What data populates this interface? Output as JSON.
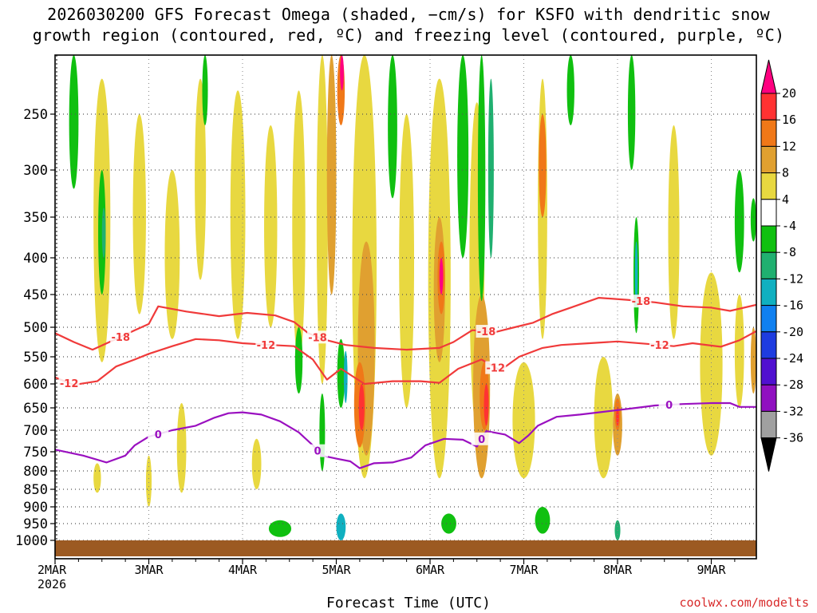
{
  "header": {
    "title_line1": "2026030200 GFS Forecast Omega (shaded, −cm/s) for KSFO with dendritic snow",
    "title_line2": "growth region (contoured, red, ºC) and freezing level (contoured, purple, ºC)"
  },
  "footer": {
    "xlabel": "Forecast Time (UTC)",
    "credit": "coolwx.com/modelts"
  },
  "chart_data": {
    "type": "heatmap",
    "title": "2026030200 GFS Forecast Omega (shaded, −cm/s) for KSFO with dendritic snow growth region (contoured, red, ºC) and freezing level (contoured, purple, ºC)",
    "xlabel": "Forecast Time (UTC)",
    "ylabel": "",
    "x_range_days": [
      0,
      7.5
    ],
    "y_range_hpa": [
      200,
      1000
    ],
    "x_ticks": [
      {
        "day": 0,
        "label": "2MAR",
        "sublabel": "2026"
      },
      {
        "day": 1,
        "label": "3MAR"
      },
      {
        "day": 2,
        "label": "4MAR"
      },
      {
        "day": 3,
        "label": "5MAR"
      },
      {
        "day": 4,
        "label": "6MAR"
      },
      {
        "day": 5,
        "label": "7MAR"
      },
      {
        "day": 6,
        "label": "8MAR"
      },
      {
        "day": 7,
        "label": "9MAR"
      }
    ],
    "y_ticks": [
      250,
      300,
      350,
      400,
      450,
      500,
      550,
      600,
      650,
      700,
      750,
      800,
      850,
      900,
      950,
      1000
    ],
    "colorbar": {
      "levels": [
        20,
        16,
        12,
        8,
        4,
        -4,
        -8,
        -12,
        -16,
        -20,
        -24,
        -28,
        -32,
        -36
      ],
      "colors": [
        "#ff0080",
        "#ff3232",
        "#f07818",
        "#e0a030",
        "#e8d840",
        "#ffffff",
        "#10c010",
        "#20b070",
        "#10b0c0",
        "#1080f0",
        "#1e3ce0",
        "#5010d0",
        "#9010c0",
        "#a0a0a0",
        "#000000"
      ]
    },
    "freezing_level": {
      "value": 0,
      "label": "0",
      "color": "#9a10c0",
      "points": [
        [
          0,
          745
        ],
        [
          0.3,
          760
        ],
        [
          0.55,
          778
        ],
        [
          0.75,
          760
        ],
        [
          0.85,
          735
        ],
        [
          1.0,
          715
        ],
        [
          1.25,
          700
        ],
        [
          1.5,
          690
        ],
        [
          1.7,
          672
        ],
        [
          1.85,
          662
        ],
        [
          2.0,
          660
        ],
        [
          2.2,
          665
        ],
        [
          2.4,
          680
        ],
        [
          2.6,
          705
        ],
        [
          2.75,
          735
        ],
        [
          2.85,
          760
        ],
        [
          3.0,
          768
        ],
        [
          3.15,
          775
        ],
        [
          3.25,
          793
        ],
        [
          3.4,
          780
        ],
        [
          3.6,
          778
        ],
        [
          3.8,
          765
        ],
        [
          3.95,
          735
        ],
        [
          4.15,
          720
        ],
        [
          4.35,
          722
        ],
        [
          4.5,
          738
        ],
        [
          4.6,
          702
        ],
        [
          4.8,
          710
        ],
        [
          4.95,
          730
        ],
        [
          5.05,
          712
        ],
        [
          5.15,
          690
        ],
        [
          5.35,
          670
        ],
        [
          5.6,
          665
        ],
        [
          5.8,
          660
        ],
        [
          6.0,
          655
        ],
        [
          6.2,
          650
        ],
        [
          6.4,
          645
        ],
        [
          6.7,
          642
        ],
        [
          7.0,
          640
        ],
        [
          7.2,
          640
        ],
        [
          7.3,
          648
        ],
        [
          7.5,
          648
        ]
      ]
    },
    "isotherm_minus12": {
      "value": -12,
      "label": "-12",
      "color": "#f03a3a",
      "points": [
        [
          0,
          588
        ],
        [
          0.2,
          602
        ],
        [
          0.45,
          595
        ],
        [
          0.65,
          568
        ],
        [
          0.85,
          555
        ],
        [
          1.0,
          545
        ],
        [
          1.25,
          532
        ],
        [
          1.5,
          520
        ],
        [
          1.75,
          522
        ],
        [
          2.0,
          527
        ],
        [
          2.3,
          530
        ],
        [
          2.55,
          532
        ],
        [
          2.75,
          555
        ],
        [
          2.9,
          592
        ],
        [
          3.05,
          572
        ],
        [
          3.3,
          600
        ],
        [
          3.6,
          595
        ],
        [
          3.9,
          595
        ],
        [
          4.1,
          598
        ],
        [
          4.3,
          572
        ],
        [
          4.55,
          555
        ],
        [
          4.75,
          575
        ],
        [
          4.95,
          550
        ],
        [
          5.2,
          535
        ],
        [
          5.4,
          530
        ],
        [
          5.7,
          527
        ],
        [
          6.0,
          524
        ],
        [
          6.3,
          528
        ],
        [
          6.6,
          532
        ],
        [
          6.8,
          527
        ],
        [
          7.1,
          533
        ],
        [
          7.3,
          522
        ],
        [
          7.5,
          505
        ]
      ]
    },
    "isotherm_minus18": {
      "value": -18,
      "label": "-18",
      "color": "#f03a3a",
      "points": [
        [
          0,
          510
        ],
        [
          0.2,
          525
        ],
        [
          0.4,
          538
        ],
        [
          0.65,
          520
        ],
        [
          0.85,
          505
        ],
        [
          1.0,
          495
        ],
        [
          1.1,
          468
        ],
        [
          1.4,
          476
        ],
        [
          1.75,
          483
        ],
        [
          2.05,
          478
        ],
        [
          2.35,
          482
        ],
        [
          2.55,
          492
        ],
        [
          2.7,
          510
        ],
        [
          2.85,
          520
        ],
        [
          3.1,
          530
        ],
        [
          3.4,
          535
        ],
        [
          3.75,
          538
        ],
        [
          4.1,
          535
        ],
        [
          4.25,
          525
        ],
        [
          4.45,
          505
        ],
        [
          4.7,
          508
        ],
        [
          4.85,
          502
        ],
        [
          5.1,
          493
        ],
        [
          5.3,
          480
        ],
        [
          5.5,
          470
        ],
        [
          5.8,
          455
        ],
        [
          6.1,
          458
        ],
        [
          6.4,
          462
        ],
        [
          6.7,
          468
        ],
        [
          7.0,
          470
        ],
        [
          7.2,
          475
        ],
        [
          7.5,
          465
        ]
      ]
    },
    "omega_notes": "Shaded omega: widespread 4–12 (yellow/orange) ascent with maxima 16–20 near 5MAR 200–250 hPa, 6MAR 400–450 hPa and 5MAR–7MAR 600–700 hPa; green descent cells (-4 to -16) scattered, notably along 3MAR, 5MAR, 7MAR upper levels and near 950–1000 hPa."
  }
}
